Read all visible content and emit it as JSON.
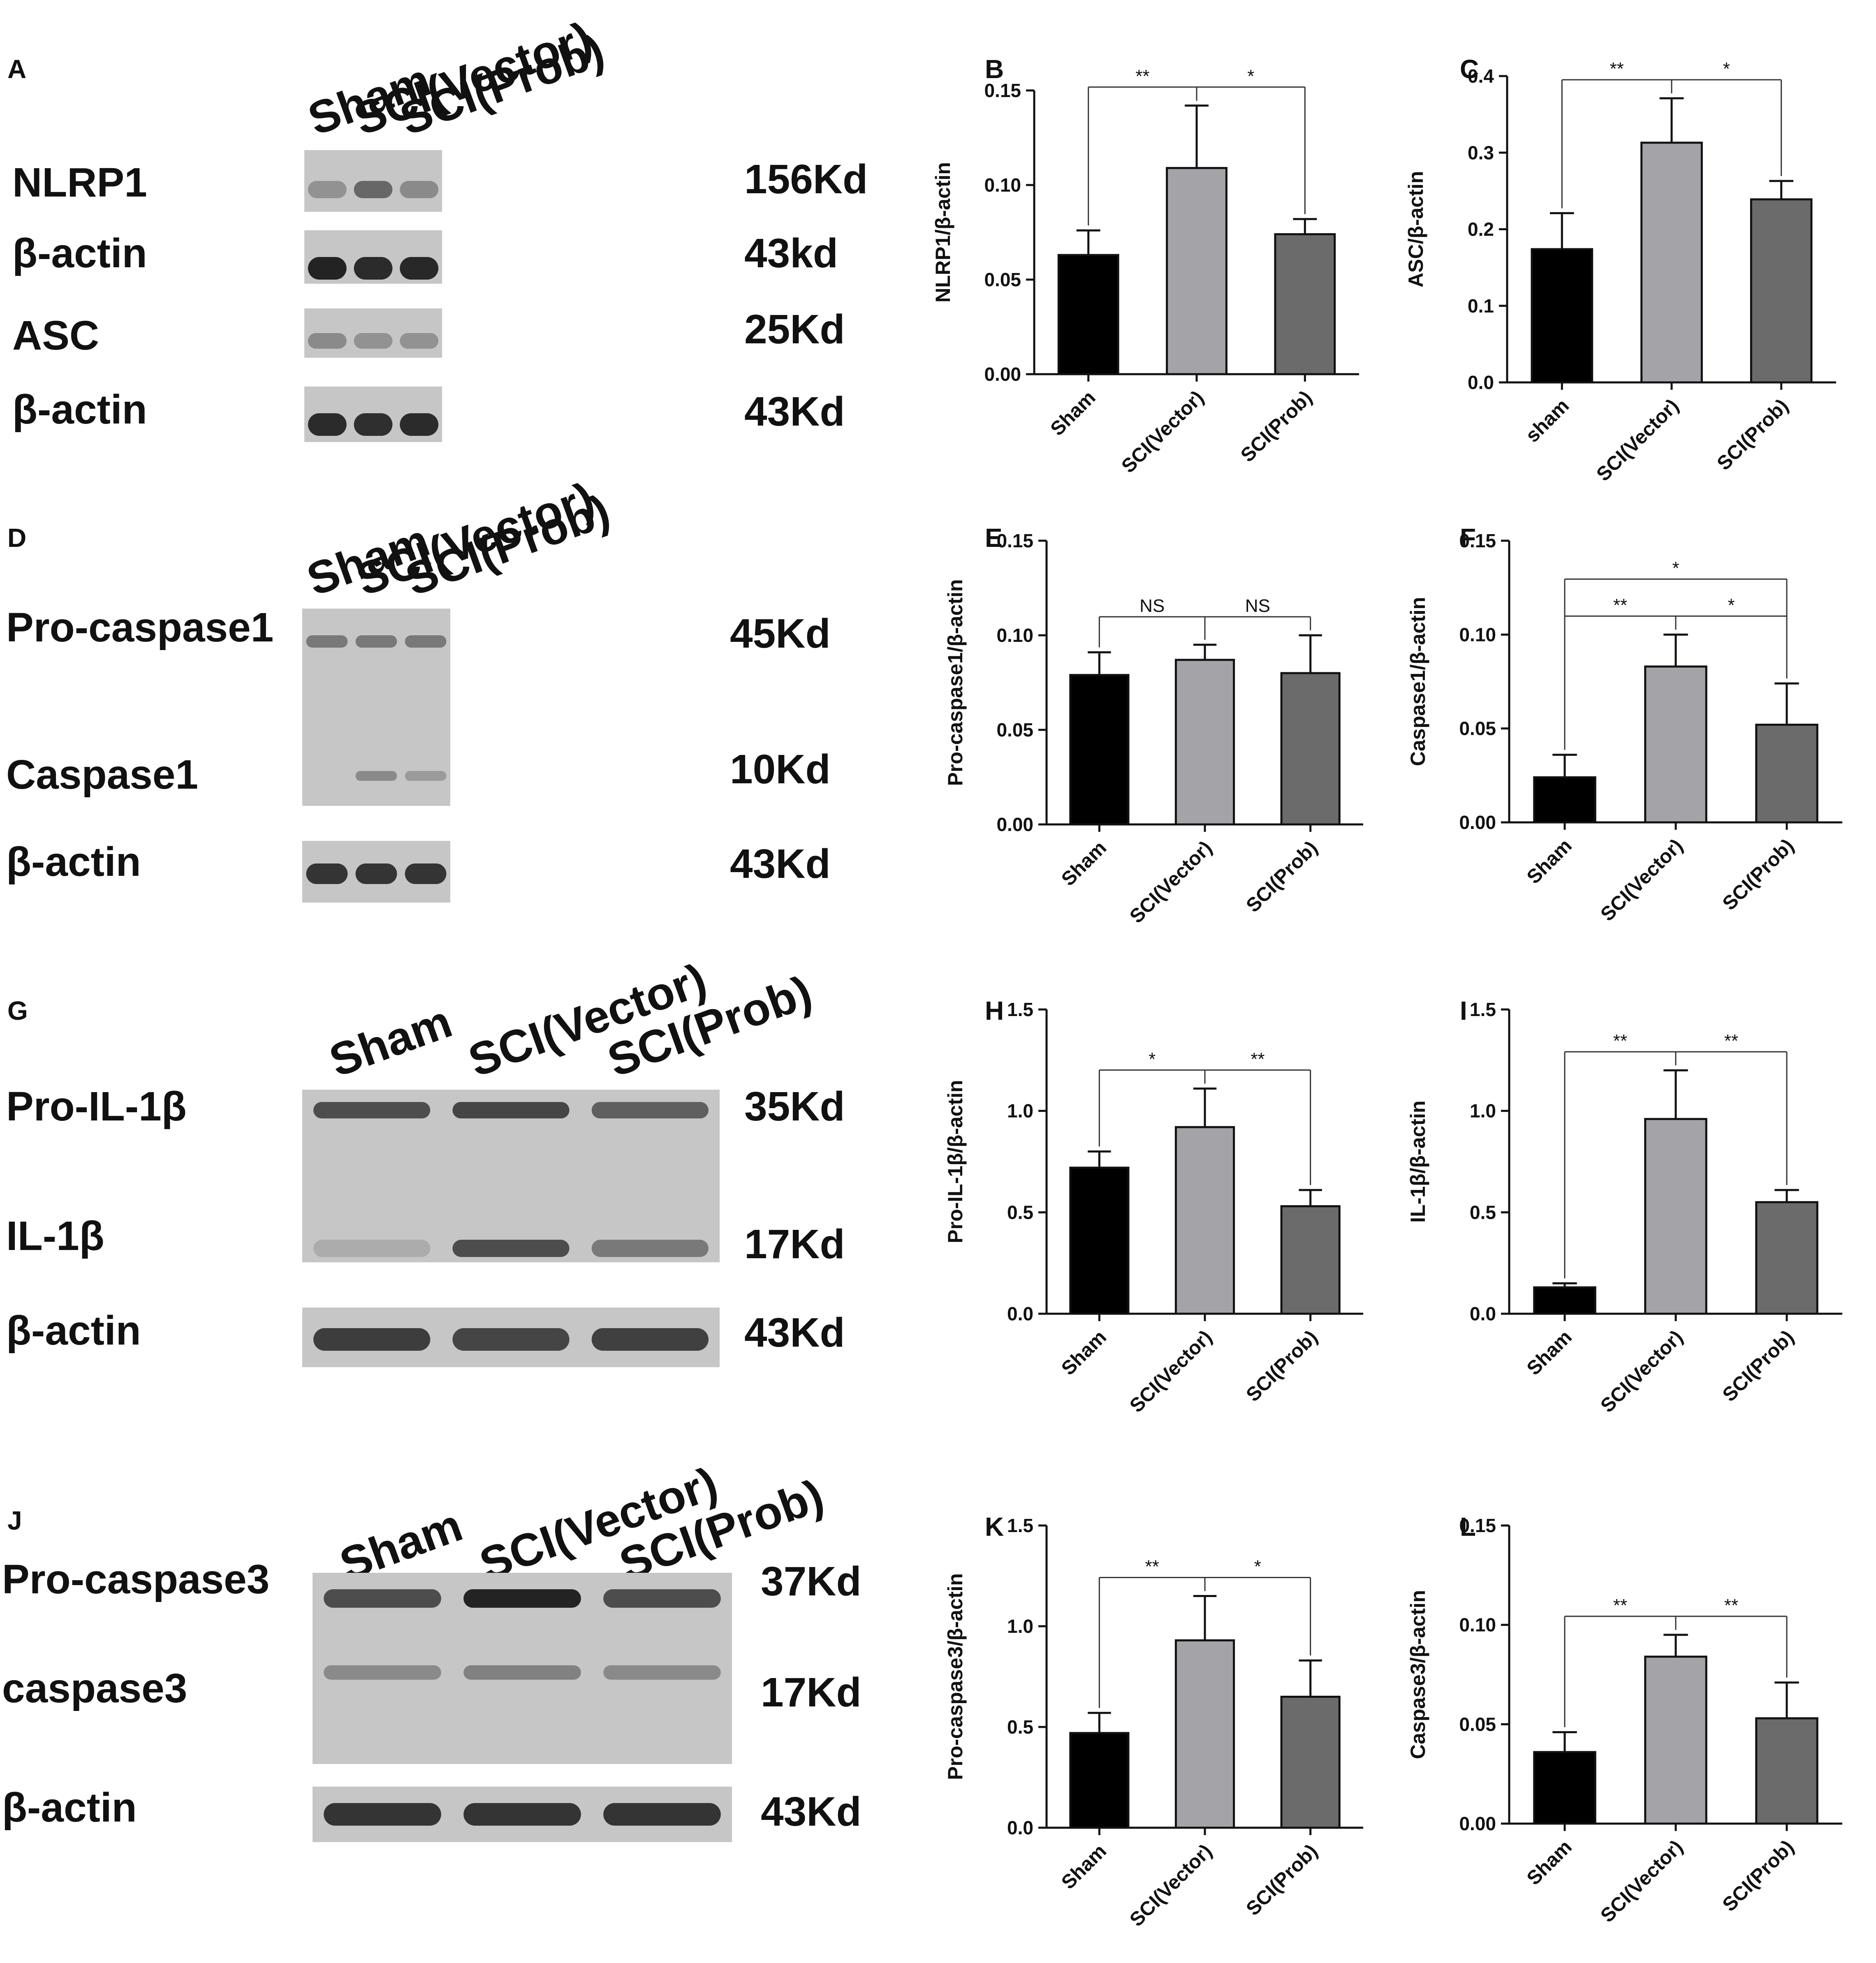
{
  "palette": {
    "bar_colors": [
      "#000000",
      "#a3a3a8",
      "#6b6b6b"
    ],
    "blot_bg": "#c6c6c6",
    "blot_band": "#1a1a1a"
  },
  "blots": [
    {
      "panel": "A",
      "lanes": [
        "Sham",
        "SCI(Vector)",
        "SCI(Prob)"
      ],
      "strips": [
        {
          "label": "NLRP1",
          "bands": [
            {
              "size": "156Kd",
              "intensity": [
                0.3,
                0.55,
                0.35
              ]
            }
          ]
        },
        {
          "label": "β-actin",
          "bands": [
            {
              "size": "43kd",
              "intensity": [
                0.95,
                0.9,
                0.92
              ]
            }
          ]
        },
        {
          "label": "ASC",
          "bands": [
            {
              "size": "25Kd",
              "intensity": [
                0.35,
                0.3,
                0.3
              ]
            }
          ]
        },
        {
          "label": "β-actin",
          "bands": [
            {
              "size": "43Kd",
              "intensity": [
                0.9,
                0.88,
                0.9
              ]
            }
          ]
        }
      ]
    },
    {
      "panel": "D",
      "lanes": [
        "Sham",
        "SCI(Vector)",
        "SCI(Prob)"
      ],
      "strips": [
        {
          "label": "",
          "bands": [
            {
              "label": "Pro-caspase1",
              "size": "45Kd",
              "intensity": [
                0.45,
                0.45,
                0.45
              ]
            },
            {
              "label": "Caspase1",
              "size": "10Kd",
              "intensity": [
                0.0,
                0.35,
                0.25
              ]
            }
          ]
        },
        {
          "label": "β-actin",
          "bands": [
            {
              "size": "43Kd",
              "intensity": [
                0.85,
                0.85,
                0.85
              ]
            }
          ]
        }
      ]
    },
    {
      "panel": "G",
      "lanes": [
        "Sham",
        "SCI(Vector)",
        "SCI(Prob)"
      ],
      "strips": [
        {
          "label": "",
          "bands": [
            {
              "label": "Pro-IL-1β",
              "size": "35Kd",
              "intensity": [
                0.7,
                0.75,
                0.6
              ]
            },
            {
              "label": "IL-1β",
              "size": "17Kd",
              "intensity": [
                0.15,
                0.7,
                0.45
              ]
            }
          ]
        },
        {
          "label": "β-actin",
          "bands": [
            {
              "size": "43Kd",
              "intensity": [
                0.8,
                0.75,
                0.78
              ]
            }
          ]
        }
      ]
    },
    {
      "panel": "J",
      "lanes": [
        "Sham",
        "SCI(Vector)",
        "SCI(Prob)"
      ],
      "strips": [
        {
          "label": "",
          "bands": [
            {
              "label": "Pro-caspase3",
              "size": "37Kd",
              "intensity": [
                0.7,
                0.95,
                0.7
              ]
            },
            {
              "label": "caspase3",
              "size": "17Kd",
              "intensity": [
                0.35,
                0.4,
                0.35
              ]
            }
          ]
        },
        {
          "label": "β-actin",
          "bands": [
            {
              "size": "43Kd",
              "intensity": [
                0.85,
                0.85,
                0.85
              ]
            }
          ]
        }
      ]
    }
  ],
  "chart_data": [
    {
      "panel": "B",
      "type": "bar",
      "categories": [
        "Sham",
        "SCI(Vector)",
        "SCI(Prob)"
      ],
      "values": [
        0.063,
        0.109,
        0.074
      ],
      "errors": [
        0.013,
        0.033,
        0.008
      ],
      "ylabel": "NLRP1/β-actin",
      "ylim": [
        0,
        0.15
      ],
      "yticks": [
        "0.00",
        "0.05",
        "0.10",
        "0.15"
      ],
      "annotations": [
        {
          "from": 0,
          "to": 1,
          "label": "**"
        },
        {
          "from": 1,
          "to": 2,
          "label": "*"
        }
      ]
    },
    {
      "panel": "C",
      "type": "bar",
      "categories": [
        "sham",
        "SCI(Vector)",
        "SCI(Prob)"
      ],
      "values": [
        0.174,
        0.313,
        0.239
      ],
      "errors": [
        0.047,
        0.058,
        0.024
      ],
      "ylabel": "ASC/β-actin",
      "ylim": [
        0,
        0.4
      ],
      "yticks": [
        "0.0",
        "0.1",
        "0.2",
        "0.3",
        "0.4"
      ],
      "annotations": [
        {
          "from": 0,
          "to": 1,
          "label": "**"
        },
        {
          "from": 1,
          "to": 2,
          "label": "*"
        }
      ]
    },
    {
      "panel": "E",
      "type": "bar",
      "categories": [
        "Sham",
        "SCI(Vector)",
        "SCI(Prob)"
      ],
      "values": [
        0.079,
        0.087,
        0.08
      ],
      "errors": [
        0.012,
        0.008,
        0.02
      ],
      "ylabel": "Pro-caspase1/β-actin",
      "ylim": [
        0,
        0.15
      ],
      "yticks": [
        "0.00",
        "0.05",
        "0.10",
        "0.15"
      ],
      "annotations": [
        {
          "from": 0,
          "to": 1,
          "label": "NS"
        },
        {
          "from": 1,
          "to": 2,
          "label": "NS"
        }
      ]
    },
    {
      "panel": "F",
      "type": "bar",
      "categories": [
        "Sham",
        "SCI(Vector)",
        "SCI(Prob)"
      ],
      "values": [
        0.024,
        0.083,
        0.052
      ],
      "errors": [
        0.012,
        0.017,
        0.022
      ],
      "ylabel": "Caspase1/β-actin",
      "ylim": [
        0,
        0.15
      ],
      "yticks": [
        "0.00",
        "0.05",
        "0.10",
        "0.15"
      ],
      "annotations": [
        {
          "from": 0,
          "to": 2,
          "label": "*"
        },
        {
          "from": 0,
          "to": 1,
          "label": "**"
        },
        {
          "from": 1,
          "to": 2,
          "label": "*"
        }
      ]
    },
    {
      "panel": "H",
      "type": "bar",
      "categories": [
        "Sham",
        "SCI(Vector)",
        "SCI(Prob)"
      ],
      "values": [
        0.72,
        0.92,
        0.53
      ],
      "errors": [
        0.08,
        0.19,
        0.08
      ],
      "ylabel": "Pro-IL-1β/β-actin",
      "ylim": [
        0,
        1.5
      ],
      "yticks": [
        "0.0",
        "0.5",
        "1.0",
        "1.5"
      ],
      "annotations": [
        {
          "from": 0,
          "to": 1,
          "label": "*"
        },
        {
          "from": 1,
          "to": 2,
          "label": "**"
        }
      ]
    },
    {
      "panel": "I",
      "type": "bar",
      "categories": [
        "Sham",
        "SCI(Vector)",
        "SCI(Prob)"
      ],
      "values": [
        0.13,
        0.96,
        0.55
      ],
      "errors": [
        0.02,
        0.24,
        0.06
      ],
      "ylabel": "IL-1β/β-actin",
      "ylim": [
        0,
        1.5
      ],
      "yticks": [
        "0.0",
        "0.5",
        "1.0",
        "1.5"
      ],
      "annotations": [
        {
          "from": 0,
          "to": 1,
          "label": "**"
        },
        {
          "from": 1,
          "to": 2,
          "label": "**"
        }
      ]
    },
    {
      "panel": "K",
      "type": "bar",
      "categories": [
        "Sham",
        "SCI(Vector)",
        "SCI(Prob)"
      ],
      "values": [
        0.47,
        0.93,
        0.65
      ],
      "errors": [
        0.1,
        0.22,
        0.18
      ],
      "ylabel": "Pro-caspase3/β-actin",
      "ylim": [
        0,
        1.5
      ],
      "yticks": [
        "0.0",
        "0.5",
        "1.0",
        "1.5"
      ],
      "annotations": [
        {
          "from": 0,
          "to": 1,
          "label": "**"
        },
        {
          "from": 1,
          "to": 2,
          "label": "*"
        }
      ]
    },
    {
      "panel": "L",
      "type": "bar",
      "categories": [
        "Sham",
        "SCI(Vector)",
        "SCI(Prob)"
      ],
      "values": [
        0.036,
        0.084,
        0.053
      ],
      "errors": [
        0.01,
        0.011,
        0.018
      ],
      "ylabel": "Caspase3/β-actin",
      "ylim": [
        0,
        0.15
      ],
      "yticks": [
        "0.00",
        "0.05",
        "0.10",
        "0.15"
      ],
      "annotations": [
        {
          "from": 0,
          "to": 1,
          "label": "**"
        },
        {
          "from": 1,
          "to": 2,
          "label": "**"
        }
      ]
    }
  ]
}
